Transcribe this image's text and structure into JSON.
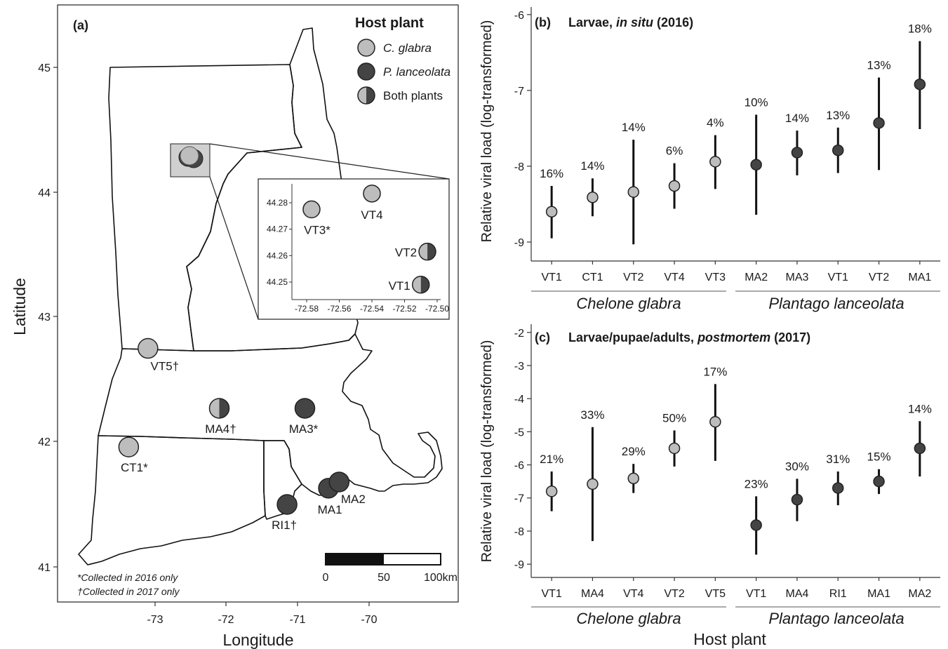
{
  "colors": {
    "glabra": "#bdbdbd",
    "lanceolata": "#444444",
    "stroke": "#222222"
  },
  "panel_a": {
    "label": "(a)",
    "xlabel": "Longitude",
    "ylabel": "Latitude",
    "x_ticks": [
      "-73",
      "-72",
      "-71",
      "-70"
    ],
    "y_ticks": [
      "41",
      "42",
      "43",
      "44",
      "45"
    ],
    "legend": {
      "title": "Host plant",
      "glabra": "C. glabra",
      "lanceolata": "P. lanceolata",
      "both": "Both plants"
    },
    "footnote_2016": "*Collected in 2016 only",
    "footnote_2017": "†Collected in 2017 only",
    "scalebar": {
      "l0": "0",
      "l1": "50",
      "l2": "100km"
    },
    "sites": {
      "VT5": "VT5†",
      "MA4": "MA4†",
      "MA3": "MA3*",
      "CT1": "CT1*",
      "RI1": "RI1†",
      "MA1": "MA1",
      "MA2": "MA2"
    },
    "inset": {
      "x_ticks": [
        "-72.58",
        "-72.56",
        "-72.54",
        "-72.52",
        "-72.50"
      ],
      "y_ticks": [
        "44.25",
        "44.26",
        "44.27",
        "44.28"
      ],
      "sites": {
        "VT3": "VT3*",
        "VT4": "VT4",
        "VT2": "VT2",
        "VT1": "VT1"
      }
    }
  },
  "panel_b": {
    "label": "(b)",
    "title_pre": "Larvae, ",
    "title_italic": "in situ",
    "title_post": " (2016)",
    "group_glabra": "Chelone glabra",
    "group_lanceolata": "Plantago lanceolata"
  },
  "panel_c": {
    "label": "(c)",
    "title_pre": "Larvae/pupae/adults, ",
    "title_italic": "postmortem",
    "title_post": " (2017)",
    "group_glabra": "Chelone glabra",
    "group_lanceolata": "Plantago lanceolata"
  },
  "shared_ylabel": "Relative viral load (log-transformed)",
  "shared_xlabel": "Host plant",
  "chart_data": [
    {
      "type": "scatter",
      "panel": "(a)",
      "xlabel": "Longitude",
      "ylabel": "Latitude",
      "xlim": [
        -73.75,
        -69.85
      ],
      "ylim": [
        40.9,
        45.35
      ],
      "legend_position": "top-right",
      "points": [
        {
          "site": "VT5†",
          "lon": -73.1,
          "lat": 42.75,
          "host": "C. glabra"
        },
        {
          "site": "MA4†",
          "lon": -72.1,
          "lat": 42.27,
          "host": "Both plants"
        },
        {
          "site": "MA3*",
          "lon": -70.9,
          "lat": 42.27,
          "host": "P. lanceolata"
        },
        {
          "site": "CT1*",
          "lon": -73.37,
          "lat": 41.96,
          "host": "C. glabra"
        },
        {
          "site": "RI1†",
          "lon": -71.15,
          "lat": 41.5,
          "host": "P. lanceolata"
        },
        {
          "site": "MA1",
          "lon": -70.57,
          "lat": 41.63,
          "host": "P. lanceolata"
        },
        {
          "site": "MA2",
          "lon": -70.42,
          "lat": 41.68,
          "host": "P. lanceolata"
        }
      ]
    },
    {
      "type": "scatter",
      "panel": "(a) inset",
      "xlim": [
        -72.585,
        -72.495
      ],
      "ylim": [
        44.243,
        44.286
      ],
      "points": [
        {
          "site": "VT3*",
          "lon": -72.577,
          "lat": 44.2775,
          "host": "C. glabra"
        },
        {
          "site": "VT4",
          "lon": -72.54,
          "lat": 44.2835,
          "host": "C. glabra"
        },
        {
          "site": "VT2",
          "lon": -72.506,
          "lat": 44.2615,
          "host": "Both plants"
        },
        {
          "site": "VT1",
          "lon": -72.51,
          "lat": 44.249,
          "host": "Both plants"
        }
      ]
    },
    {
      "type": "scatter",
      "panel": "(b)",
      "title": "Larvae, in situ (2016)",
      "ylabel": "Relative viral load (log-transformed)",
      "ylim": [
        -9.25,
        -5.9
      ],
      "y_ticks": [
        -9,
        -8,
        -7,
        -6
      ],
      "categories": [
        "VT1",
        "CT1",
        "VT2",
        "VT4",
        "VT3",
        "MA2",
        "MA3",
        "VT1",
        "VT2",
        "MA1"
      ],
      "series": [
        {
          "name": "Chelone glabra",
          "values": [
            -8.6,
            -8.41,
            -8.34,
            -8.26,
            -7.94
          ],
          "lower": [
            -8.95,
            -8.66,
            -9.03,
            -8.56,
            -8.3
          ],
          "upper": [
            -8.26,
            -8.16,
            -7.65,
            -7.96,
            -7.59
          ],
          "labels": [
            "16%",
            "14%",
            "14%",
            "6%",
            "4%"
          ]
        },
        {
          "name": "Plantago lanceolata",
          "values": [
            -7.98,
            -7.82,
            -7.79,
            -7.43,
            -6.92
          ],
          "lower": [
            -8.64,
            -8.12,
            -8.09,
            -8.05,
            -7.51
          ],
          "upper": [
            -7.32,
            -7.53,
            -7.49,
            -6.83,
            -6.35
          ],
          "labels": [
            "10%",
            "14%",
            "13%",
            "13%",
            "18%"
          ]
        }
      ]
    },
    {
      "type": "scatter",
      "panel": "(c)",
      "title": "Larvae/pupae/adults, postmortem (2017)",
      "xlabel": "Host plant",
      "ylabel": "Relative viral load (log-transformed)",
      "ylim": [
        -9.4,
        -1.75
      ],
      "y_ticks": [
        -9,
        -8,
        -7,
        -6,
        -5,
        -4,
        -3,
        -2
      ],
      "categories": [
        "VT1",
        "MA4",
        "VT4",
        "VT2",
        "VT5",
        "VT1",
        "MA4",
        "RI1",
        "MA1",
        "MA2"
      ],
      "series": [
        {
          "name": "Chelone glabra",
          "values": [
            -6.8,
            -6.58,
            -6.41,
            -5.5,
            -4.7
          ],
          "lower": [
            -7.4,
            -8.3,
            -6.85,
            -6.05,
            -5.88
          ],
          "upper": [
            -6.2,
            -4.86,
            -5.97,
            -4.96,
            -3.56
          ],
          "labels": [
            "21%",
            "33%",
            "29%",
            "50%",
            "17%"
          ]
        },
        {
          "name": "Plantago lanceolata",
          "values": [
            -7.82,
            -7.05,
            -6.7,
            -6.5,
            -5.5
          ],
          "lower": [
            -8.71,
            -7.7,
            -7.22,
            -6.88,
            -6.35
          ],
          "upper": [
            -6.95,
            -6.42,
            -6.2,
            -6.13,
            -4.68
          ],
          "labels": [
            "23%",
            "30%",
            "31%",
            "15%",
            "14%"
          ]
        }
      ]
    }
  ]
}
